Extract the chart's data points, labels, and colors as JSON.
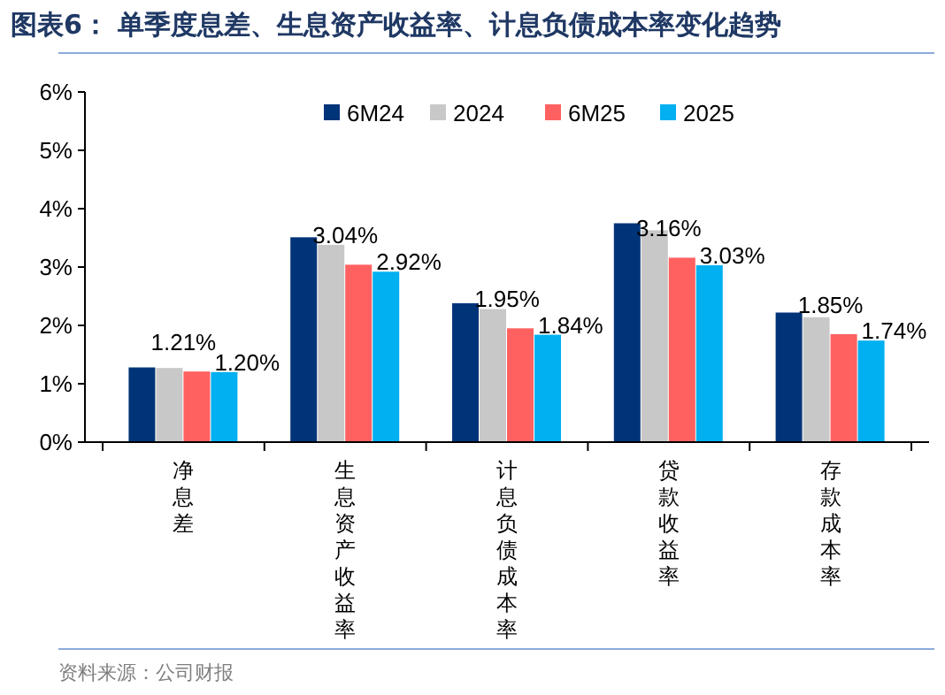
{
  "chart_data": {
    "type": "bar",
    "title": "图表6：  单季度息差、生息资产收益率、计息负债成本率变化趋势",
    "categories": [
      "净息差",
      "生息资产收益率",
      "计息负债成本率",
      "贷款收益率",
      "存款成本率"
    ],
    "series": [
      {
        "name": "6M24",
        "color": "#003479",
        "values": [
          1.28,
          3.51,
          2.38,
          3.75,
          2.22
        ]
      },
      {
        "name": "2024",
        "color": "#c8c8c8",
        "values": [
          1.27,
          3.38,
          2.28,
          3.63,
          2.14
        ]
      },
      {
        "name": "6M25",
        "color": "#ff6161",
        "values": [
          1.21,
          3.04,
          1.95,
          3.16,
          1.85
        ],
        "value_labels": [
          "1.21%",
          "3.04%",
          "1.95%",
          "3.16%",
          "1.85%"
        ]
      },
      {
        "name": "2025",
        "color": "#00b0f0",
        "values": [
          1.2,
          2.92,
          1.84,
          3.03,
          1.74
        ],
        "value_labels": [
          "1.20%",
          "2.92%",
          "1.84%",
          "3.03%",
          "1.74%"
        ]
      }
    ],
    "ylim": [
      0,
      6
    ],
    "yticks": [
      {
        "value": 0,
        "label": "0%"
      },
      {
        "value": 1,
        "label": "1%"
      },
      {
        "value": 2,
        "label": "2%"
      },
      {
        "value": 3,
        "label": "3%"
      },
      {
        "value": 4,
        "label": "4%"
      },
      {
        "value": 5,
        "label": "5%"
      },
      {
        "value": 6,
        "label": "6%"
      }
    ],
    "grid": false,
    "legend": "top right",
    "annotations": [
      "资料来源：公司财报"
    ]
  }
}
